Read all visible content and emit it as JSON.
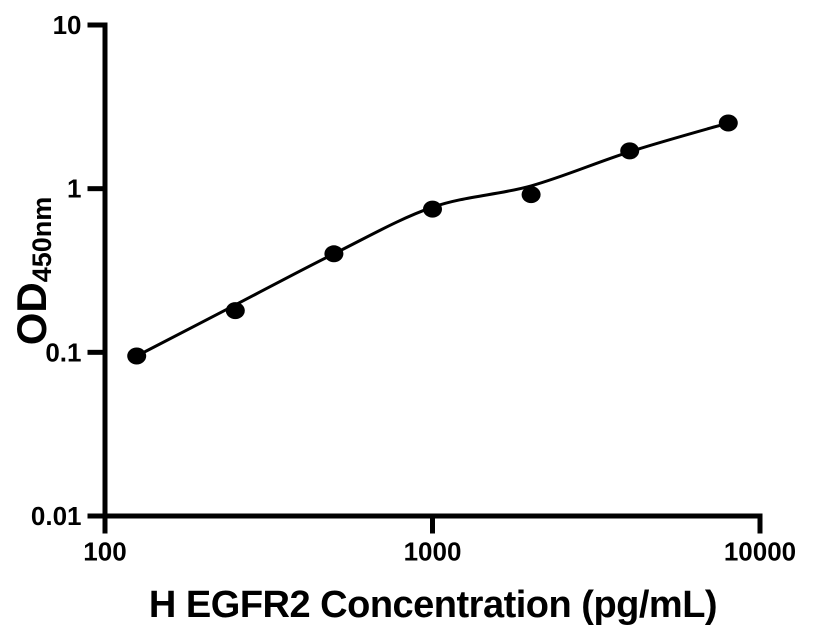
{
  "chart_data": {
    "type": "scatter",
    "title": "",
    "xlabel": "H EGFR2 Concentration (pg/mL)",
    "ylabel_main": "OD",
    "ylabel_sub": "450nm",
    "x_scale": "log",
    "y_scale": "log",
    "xlim": [
      100,
      10000
    ],
    "ylim": [
      0.01,
      10
    ],
    "x_ticks": [
      {
        "value": 100,
        "label": "100"
      },
      {
        "value": 1000,
        "label": "1000"
      },
      {
        "value": 10000,
        "label": "10000"
      }
    ],
    "y_ticks": [
      {
        "value": 10,
        "label": "10"
      },
      {
        "value": 1,
        "label": "1"
      },
      {
        "value": 0.1,
        "label": "0.1"
      },
      {
        "value": 0.01,
        "label": "0.01"
      }
    ],
    "points": [
      {
        "x": 125,
        "y": 0.095
      },
      {
        "x": 250,
        "y": 0.18
      },
      {
        "x": 500,
        "y": 0.4
      },
      {
        "x": 1000,
        "y": 0.75
      },
      {
        "x": 2000,
        "y": 0.92
      },
      {
        "x": 4000,
        "y": 1.7
      },
      {
        "x": 8000,
        "y": 2.52
      }
    ],
    "fit_curve": [
      {
        "x": 125,
        "y": 0.095
      },
      {
        "x": 250,
        "y": 0.195
      },
      {
        "x": 500,
        "y": 0.4
      },
      {
        "x": 1000,
        "y": 0.77
      },
      {
        "x": 2000,
        "y": 1.04
      },
      {
        "x": 4000,
        "y": 1.68
      },
      {
        "x": 8000,
        "y": 2.52
      }
    ],
    "grid": "off",
    "legend": "none",
    "marker_color": "#000000",
    "line_color": "#000000",
    "axis_color": "#000000",
    "background_color": "#ffffff"
  }
}
